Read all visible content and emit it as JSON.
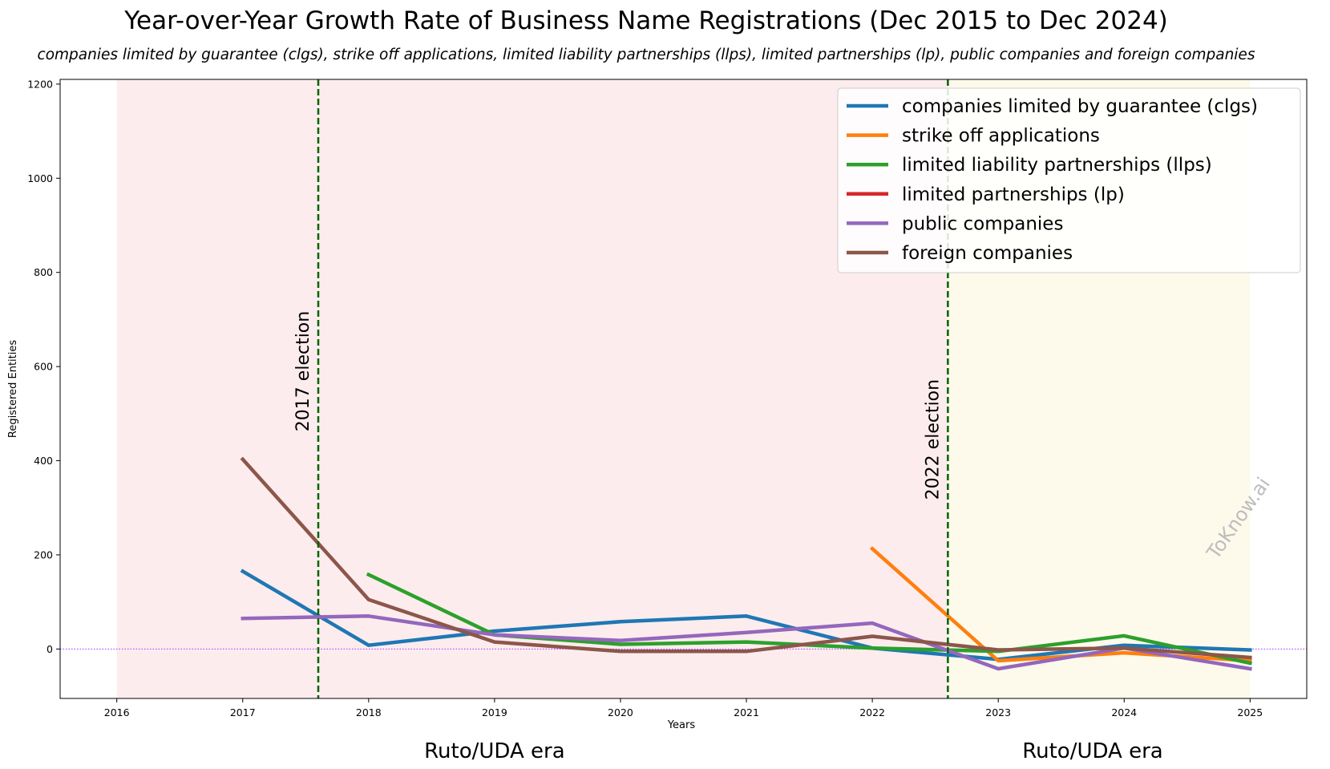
{
  "chart_data": {
    "type": "line",
    "title": "Year-over-Year Growth Rate of Business Name Registrations (Dec 2015 to Dec 2024)",
    "subtitle": "companies limited by guarantee (clgs), strike off applications, limited liability partnerships (llps), limited partnerships (lp), public companies and foreign companies",
    "xlabel": "Years",
    "ylabel": "Registered Entities",
    "xlim": [
      2015.55,
      2025.45
    ],
    "ylim": [
      -105,
      1210
    ],
    "x_ticks": [
      "2016",
      "2017",
      "2018",
      "2019",
      "2020",
      "2021",
      "2022",
      "2023",
      "2024",
      "2025"
    ],
    "y_ticks": [
      "0",
      "200",
      "400",
      "600",
      "800",
      "1000",
      "1200"
    ],
    "grid": false,
    "legend_position": "top-right",
    "reference_line": {
      "y": 0,
      "color": "#9b30ff",
      "style": "dotted"
    },
    "shaded_regions": [
      {
        "x_start": 2016.0,
        "x_end": 2022.6,
        "color": "#fdeced"
      },
      {
        "x_start": 2022.6,
        "x_end": 2025.0,
        "color": "#fdfaeb"
      }
    ],
    "era_labels": [
      {
        "text": "Ruto/UDA era",
        "x": 2019.0
      },
      {
        "text": "Ruto/UDA era",
        "x": 2023.75
      }
    ],
    "vertical_lines": [
      {
        "x": 2017.6,
        "label": "2017 election",
        "color": "#006400",
        "label_y": 590
      },
      {
        "x": 2022.6,
        "label": "2022 election",
        "color": "#006400",
        "label_y": 445
      }
    ],
    "watermark": "ToKnow.ai",
    "series": [
      {
        "name": "companies limited by guarantee (clgs)",
        "color": "#1f77b4",
        "x": [
          2017,
          2018,
          2019,
          2020,
          2021,
          2022,
          2023,
          2024,
          2025
        ],
        "y": [
          165,
          8,
          38,
          58,
          70,
          2,
          -22,
          8,
          -2
        ]
      },
      {
        "name": "strike off applications",
        "color": "#ff7f0e",
        "x": [
          2022,
          2023,
          2024,
          2025
        ],
        "y": [
          213,
          -25,
          -8,
          -25
        ]
      },
      {
        "name": "limited liability partnerships (llps)",
        "color": "#2ca02c",
        "x": [
          2018,
          2019,
          2020,
          2021,
          2022,
          2023,
          2024,
          2025
        ],
        "y": [
          158,
          30,
          10,
          15,
          2,
          -5,
          28,
          -30
        ]
      },
      {
        "name": "limited partnerships (lp)",
        "color": "#d62728",
        "x": [],
        "y": []
      },
      {
        "name": "public companies",
        "color": "#9467bd",
        "x": [
          2017,
          2018,
          2019,
          2020,
          2021,
          2022,
          2023,
          2024,
          2025
        ],
        "y": [
          65,
          70,
          30,
          18,
          35,
          55,
          -42,
          2,
          -42
        ]
      },
      {
        "name": "foreign companies",
        "color": "#8c564b",
        "x": [
          2017,
          2018,
          2019,
          2020,
          2021,
          2022,
          2023,
          2024,
          2025
        ],
        "y": [
          403,
          105,
          15,
          -5,
          -5,
          27,
          -2,
          2,
          -18
        ]
      }
    ]
  }
}
